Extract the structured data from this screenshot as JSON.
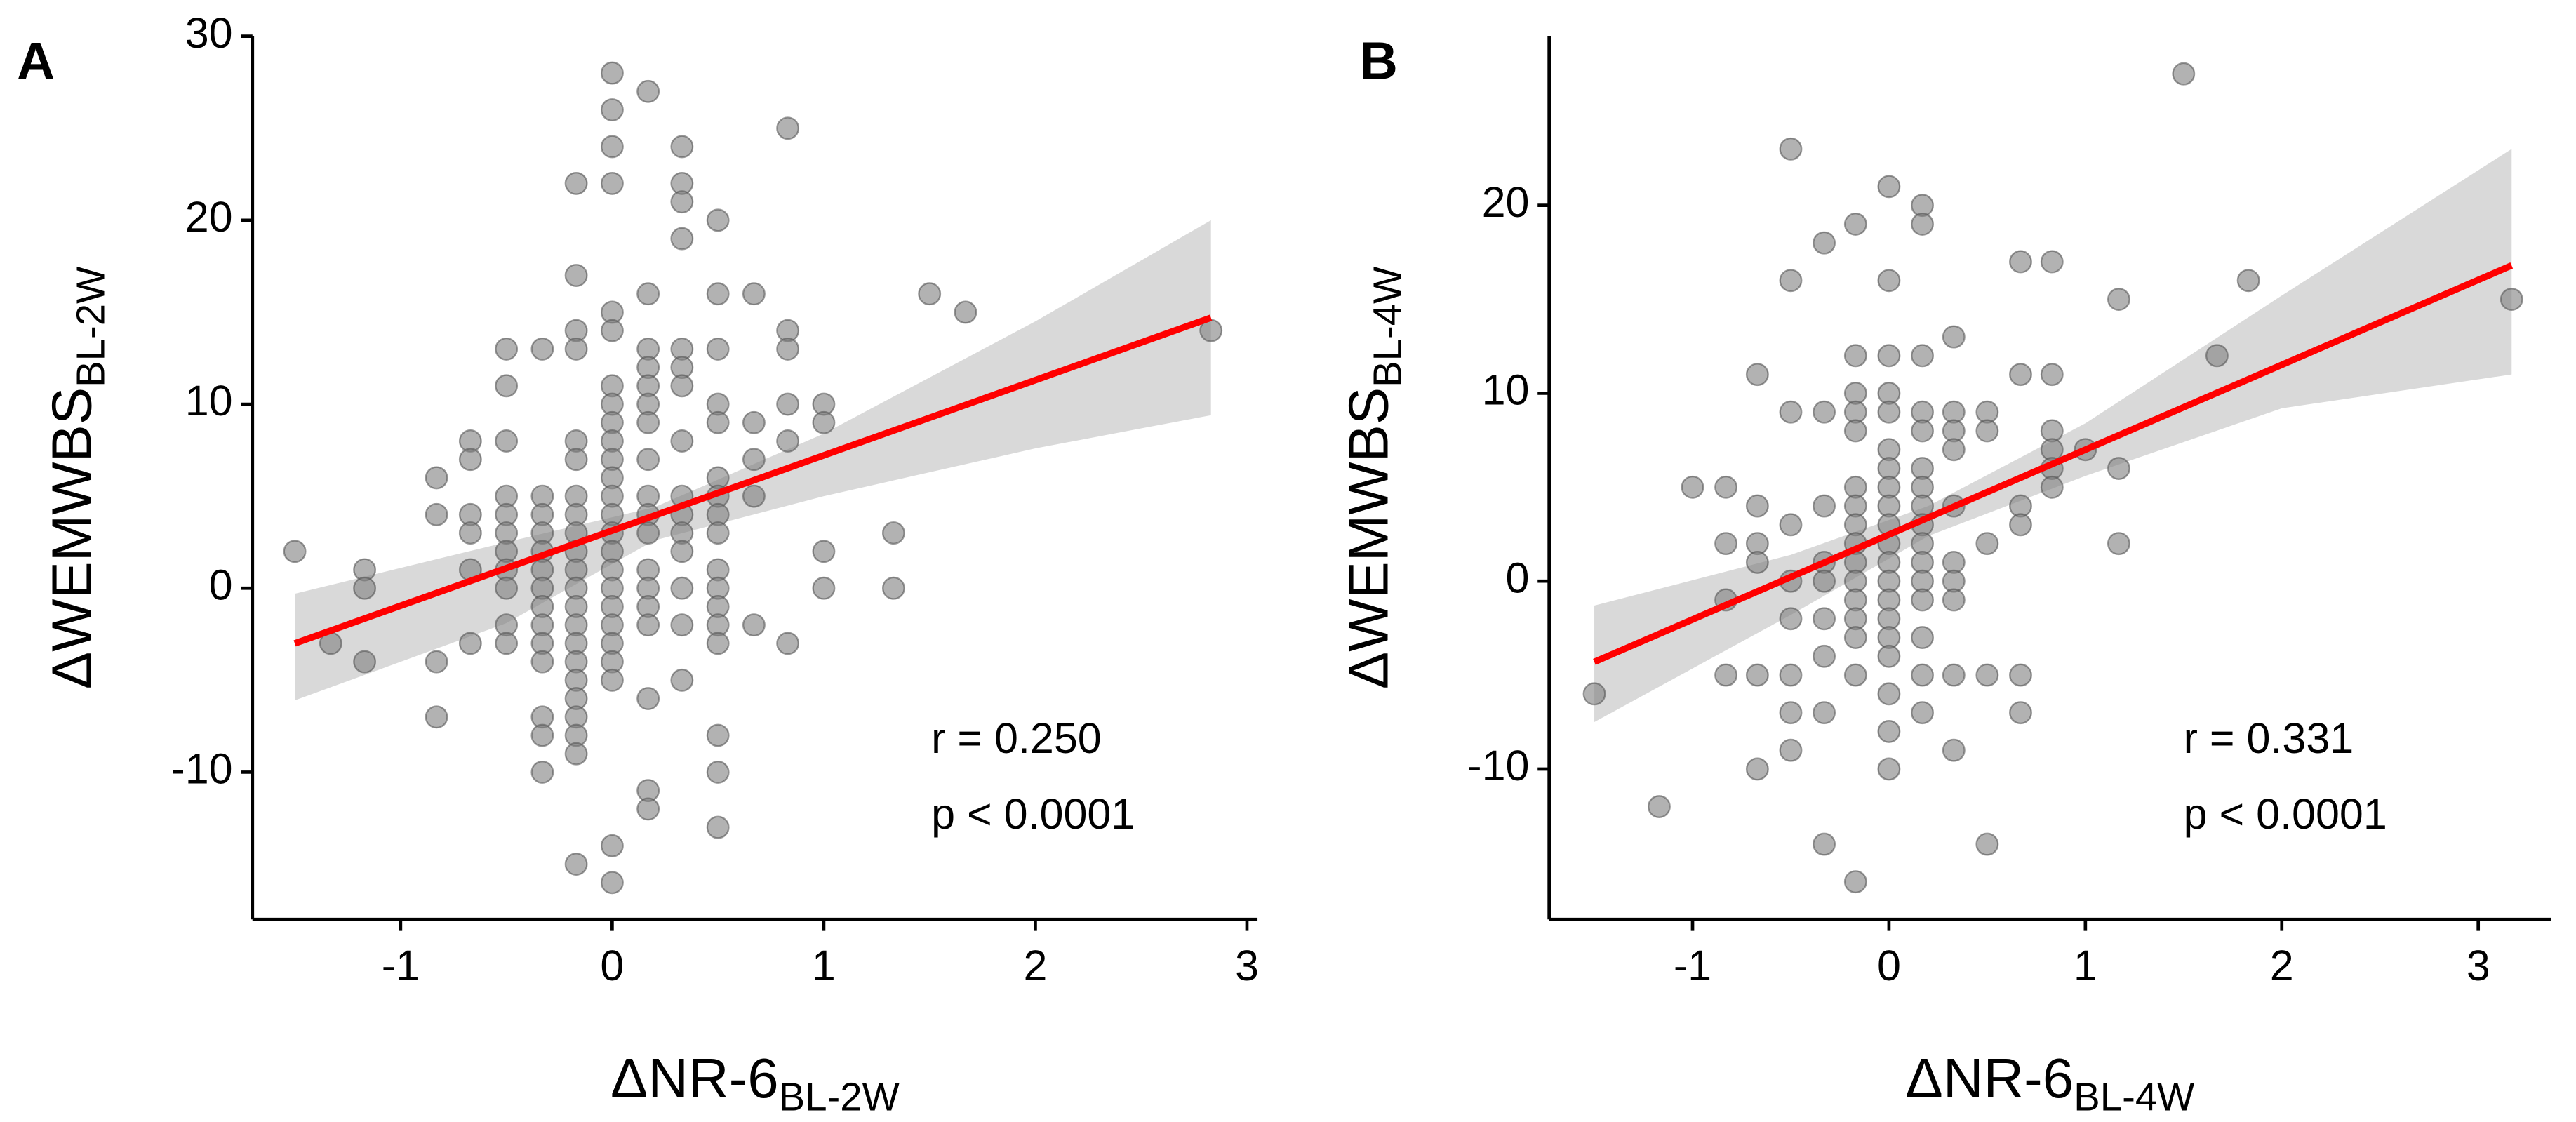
{
  "chart_data": [
    {
      "type": "scatter",
      "panel_label": "A",
      "xlabel": "ΔNR-6",
      "xlabel_sub": "BL-2W",
      "ylabel": "ΔWEMWBS",
      "ylabel_sub": "BL-2W",
      "annotations": [
        "r = 0.250",
        "p < 0.0001"
      ],
      "xlim": [
        -1.7,
        3.05
      ],
      "ylim": [
        -18,
        30
      ],
      "xticks": [
        -1,
        0,
        1,
        2,
        3
      ],
      "yticks": [
        -10,
        0,
        10,
        20,
        30
      ],
      "color": "#7f7f7f",
      "fit_color": "#ff0000",
      "band_color": "#d9d9d9",
      "fit_x": [
        -1.5,
        2.83
      ],
      "fit_y": [
        -3,
        14.7
      ],
      "band_x": [
        -1.5,
        -0.5,
        0.2,
        1,
        2,
        2.83
      ],
      "band_upper": [
        -0.3,
        2.5,
        4.4,
        8.4,
        14.5,
        20
      ],
      "band_lower": [
        -6.1,
        -1.9,
        2.6,
        5.0,
        7.6,
        9.4
      ],
      "x": [
        -1.5,
        -1.33,
        -1.17,
        -1.17,
        -1.17,
        -0.83,
        -0.83,
        -0.83,
        -0.83,
        -0.67,
        -0.67,
        -0.67,
        -0.67,
        -0.67,
        -0.67,
        -0.5,
        -0.5,
        -0.5,
        -0.5,
        -0.5,
        -0.5,
        -0.5,
        -0.5,
        -0.5,
        -0.5,
        -0.5,
        -0.33,
        -0.33,
        -0.33,
        -0.33,
        -0.33,
        -0.33,
        -0.33,
        -0.33,
        -0.33,
        -0.33,
        -0.33,
        -0.33,
        -0.33,
        -0.33,
        -0.17,
        -0.17,
        -0.17,
        -0.17,
        -0.17,
        -0.17,
        -0.17,
        -0.17,
        -0.17,
        -0.17,
        -0.17,
        -0.17,
        -0.17,
        -0.17,
        -0.17,
        -0.17,
        -0.17,
        -0.17,
        -0.17,
        -0.17,
        -0.17,
        -0.17,
        0,
        0,
        0,
        0,
        0,
        0,
        0,
        0,
        0,
        0,
        0,
        0,
        0,
        0,
        0,
        0,
        0,
        0,
        0,
        0,
        0,
        0,
        0,
        0,
        0,
        0.17,
        0.17,
        0.17,
        0.17,
        0.17,
        0.17,
        0.17,
        0.17,
        0.17,
        0.17,
        0.17,
        0.17,
        0.17,
        0.17,
        0.17,
        0.17,
        0.17,
        0.17,
        0.33,
        0.33,
        0.33,
        0.33,
        0.33,
        0.33,
        0.33,
        0.33,
        0.33,
        0.33,
        0.33,
        0.33,
        0.33,
        0.33,
        0.33,
        0.5,
        0.5,
        0.5,
        0.5,
        0.5,
        0.5,
        0.5,
        0.5,
        0.5,
        0.5,
        0.5,
        0.5,
        0.5,
        0.5,
        0.5,
        0.5,
        0.5,
        0.67,
        0.67,
        0.67,
        0.67,
        0.67,
        0.83,
        0.83,
        0.83,
        0.83,
        0.83,
        0.83,
        1,
        1,
        1,
        1,
        1.33,
        1.33,
        1.5,
        1.67,
        2.83
      ],
      "values": [
        2,
        -3,
        1,
        0,
        -4,
        6,
        4,
        -4,
        -7,
        8,
        7,
        4,
        3,
        1,
        -3,
        13,
        11,
        8,
        5,
        4,
        3,
        2,
        1,
        0,
        -2,
        -3,
        13,
        5,
        4,
        3,
        2,
        1,
        0,
        -1,
        -2,
        -3,
        -4,
        -7,
        -8,
        -10,
        22,
        17,
        14,
        13,
        8,
        7,
        5,
        4,
        3,
        2,
        1,
        0,
        -1,
        -2,
        -3,
        -4,
        -5,
        -6,
        -7,
        -8,
        -9,
        -15,
        28,
        26,
        24,
        22,
        15,
        14,
        11,
        10,
        9,
        8,
        7,
        6,
        5,
        4,
        3,
        2,
        1,
        0,
        -1,
        -2,
        -3,
        -4,
        -5,
        -14,
        -16,
        27,
        16,
        13,
        12,
        11,
        10,
        9,
        7,
        5,
        4,
        3,
        1,
        0,
        -1,
        -2,
        -6,
        -11,
        -12,
        24,
        22,
        21,
        19,
        13,
        12,
        11,
        8,
        5,
        4,
        3,
        2,
        0,
        -2,
        -5,
        20,
        16,
        13,
        10,
        9,
        6,
        5,
        4,
        3,
        1,
        0,
        -1,
        -2,
        -3,
        -8,
        -10,
        -13,
        16,
        9,
        7,
        5,
        -2,
        25,
        14,
        13,
        10,
        8,
        -3,
        10,
        9,
        2,
        0,
        3,
        0,
        16,
        15,
        14
      ]
    },
    {
      "type": "scatter",
      "panel_label": "B",
      "xlabel": "ΔNR-6",
      "xlabel_sub": "BL-4W",
      "ylabel": "ΔWEMWBS",
      "ylabel_sub": "BL-4W",
      "annotations": [
        "r = 0.331",
        "p < 0.0001"
      ],
      "xlim": [
        -1.73,
        3.37
      ],
      "ylim": [
        -18,
        29
      ],
      "xticks": [
        -1,
        0,
        1,
        2,
        3
      ],
      "yticks": [
        -10,
        0,
        10,
        20
      ],
      "color": "#7f7f7f",
      "fit_color": "#ff0000",
      "band_color": "#d9d9d9",
      "fit_x": [
        -1.5,
        3.17
      ],
      "fit_y": [
        -4.3,
        16.8
      ],
      "band_x": [
        -1.5,
        -0.5,
        0.2,
        1,
        2,
        3.17
      ],
      "band_upper": [
        -1.3,
        1.4,
        4.0,
        8.4,
        15.2,
        23
      ],
      "band_lower": [
        -7.5,
        -1.8,
        2.4,
        5.6,
        9.2,
        11
      ],
      "x": [
        -1.5,
        -1.17,
        -1,
        -0.83,
        -0.83,
        -0.83,
        -0.83,
        -0.67,
        -0.67,
        -0.67,
        -0.67,
        -0.67,
        -0.67,
        -0.5,
        -0.5,
        -0.5,
        -0.5,
        -0.5,
        -0.5,
        -0.5,
        -0.5,
        -0.5,
        -0.33,
        -0.33,
        -0.33,
        -0.33,
        -0.33,
        -0.33,
        -0.33,
        -0.33,
        -0.33,
        -0.17,
        -0.17,
        -0.17,
        -0.17,
        -0.17,
        -0.17,
        -0.17,
        -0.17,
        -0.17,
        -0.17,
        -0.17,
        -0.17,
        -0.17,
        -0.17,
        -0.17,
        -0.17,
        0,
        0,
        0,
        0,
        0,
        0,
        0,
        0,
        0,
        0,
        0,
        0,
        0,
        0,
        0,
        0,
        0,
        0,
        0,
        0,
        0.17,
        0.17,
        0.17,
        0.17,
        0.17,
        0.17,
        0.17,
        0.17,
        0.17,
        0.17,
        0.17,
        0.17,
        0.17,
        0.17,
        0.17,
        0.17,
        0.33,
        0.33,
        0.33,
        0.33,
        0.33,
        0.33,
        0.33,
        0.33,
        0.33,
        0.33,
        0.5,
        0.5,
        0.5,
        0.5,
        0.5,
        0.67,
        0.67,
        0.67,
        0.67,
        0.67,
        0.67,
        0.83,
        0.83,
        0.83,
        0.83,
        0.83,
        0.83,
        1,
        1.17,
        1.17,
        1.17,
        1.5,
        1.67,
        1.83,
        3.17
      ],
      "values": [
        -6,
        -12,
        5,
        5,
        2,
        -1,
        -5,
        11,
        4,
        2,
        1,
        -5,
        -10,
        23,
        16,
        9,
        3,
        0,
        -2,
        -5,
        -7,
        -9,
        18,
        9,
        4,
        1,
        0,
        -2,
        -4,
        -7,
        -14,
        19,
        12,
        10,
        9,
        8,
        5,
        4,
        3,
        2,
        1,
        0,
        -1,
        -2,
        -3,
        -5,
        -16,
        21,
        16,
        12,
        10,
        9,
        7,
        6,
        5,
        4,
        3,
        2,
        1,
        0,
        -1,
        -2,
        -3,
        -4,
        -6,
        -8,
        -10,
        20,
        19,
        12,
        9,
        8,
        6,
        5,
        4,
        3,
        2,
        1,
        0,
        -1,
        -3,
        -5,
        -7,
        13,
        9,
        8,
        7,
        4,
        1,
        0,
        -1,
        -5,
        -9,
        9,
        8,
        2,
        -5,
        -14,
        17,
        11,
        4,
        3,
        -5,
        -7,
        17,
        11,
        8,
        7,
        6,
        5,
        7,
        15,
        6,
        2,
        27,
        12,
        16,
        15
      ]
    }
  ]
}
